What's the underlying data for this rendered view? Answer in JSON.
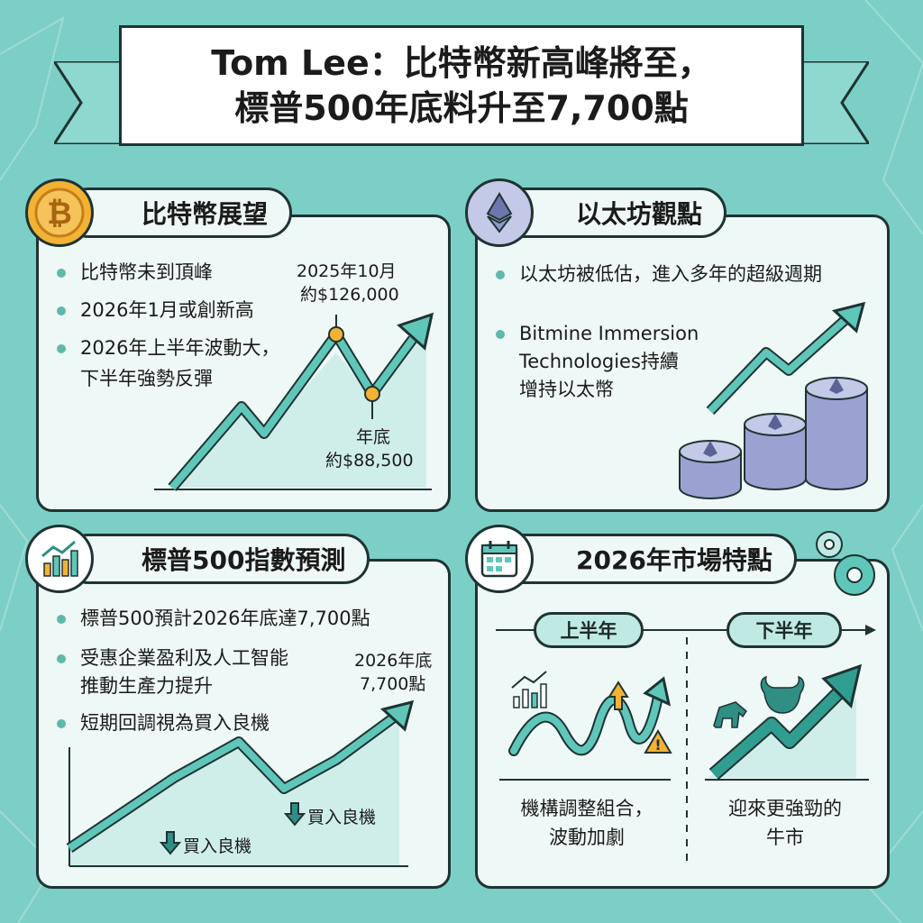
{
  "title": {
    "line1": "Tom Lee：比特幣新高峰將至，",
    "line2": "標普500年底料升至7,700點"
  },
  "bitcoin": {
    "header": "比特幣展望",
    "bullets": [
      "比特幣未到頂峰",
      "2026年1月或創新高",
      "2026年上半年波動大，",
      "下半年強勢反彈"
    ],
    "peak_label": [
      "2025年10月",
      "約$126,000"
    ],
    "low_label": [
      "年底",
      "約$88,500"
    ]
  },
  "ethereum": {
    "header": "以太坊觀點",
    "bullets": [
      "以太坊被低估，進入多年的超級週期",
      "Bitmine Immersion",
      "Technologies持續",
      "增持以太幣"
    ]
  },
  "sp500": {
    "header": "標普500指數預測",
    "bullets": [
      "標普500預計2026年底達7,700點",
      "受惠企業盈利及人工智能",
      "推動生產力提升",
      "短期回調視為買入良機"
    ],
    "target_label": [
      "2026年底",
      "7,700點"
    ],
    "buy_label_1": "買入良機",
    "buy_label_2": "買入良機"
  },
  "market2026": {
    "header": "2026年市場特點",
    "h1_label": "上半年",
    "h2_label": "下半年",
    "h1_desc": [
      "機構調整組合，",
      "波動加劇"
    ],
    "h2_desc": [
      "迎來更強勁的",
      "牛市"
    ]
  },
  "colors": {
    "background": "#7ccfc6",
    "panel": "#eef8f6",
    "accent": "#3aa89c",
    "outline": "#1f3333",
    "bitcoin_gold": "#e8a93a",
    "eth_purple": "#8f97c8"
  }
}
